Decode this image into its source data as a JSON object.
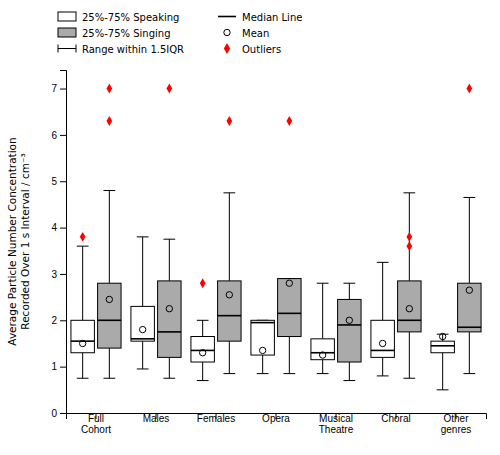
{
  "chart_data": {
    "type": "box",
    "categories": [
      "Full\nCohort",
      "Males",
      "Females",
      "Opera",
      "Musical\nTheatre",
      "Choral",
      "Other\ngenres"
    ],
    "series": [
      {
        "name": "25%-75% Speaking",
        "color": "#ffffff",
        "q1": [
          1.3,
          1.55,
          1.1,
          1.25,
          1.15,
          1.2,
          1.3
        ],
        "median": [
          1.55,
          1.6,
          1.35,
          1.95,
          1.3,
          1.35,
          1.45
        ],
        "q3": [
          2.0,
          2.3,
          1.65,
          2.0,
          1.6,
          2.0,
          1.55
        ],
        "whislo": [
          0.75,
          0.95,
          0.7,
          0.85,
          0.85,
          0.8,
          0.5
        ],
        "whishi": [
          3.6,
          3.8,
          2.0,
          2.0,
          2.8,
          3.25,
          1.7
        ],
        "mean": [
          1.5,
          1.8,
          1.3,
          1.35,
          1.25,
          1.5,
          1.65
        ],
        "outliers": [
          [
            3.8
          ],
          [],
          [
            2.8
          ],
          [],
          [],
          [],
          []
        ]
      },
      {
        "name": "25%-75% Singing",
        "color": "#aaaaaa",
        "q1": [
          1.4,
          1.2,
          1.55,
          1.65,
          1.1,
          1.75,
          1.75
        ],
        "median": [
          2.0,
          1.75,
          2.1,
          2.15,
          1.9,
          2.0,
          1.85
        ],
        "q3": [
          2.8,
          2.85,
          2.85,
          2.9,
          2.45,
          2.85,
          2.8
        ],
        "whislo": [
          0.75,
          0.75,
          0.85,
          0.85,
          0.7,
          0.75,
          0.85
        ],
        "whishi": [
          4.8,
          3.75,
          4.75,
          2.9,
          2.8,
          4.75,
          4.65
        ],
        "mean": [
          2.45,
          2.25,
          2.55,
          2.8,
          2.0,
          2.25,
          2.65
        ],
        "outliers": [
          [
            6.3,
            7.0
          ],
          [
            7.0
          ],
          [
            6.3
          ],
          [
            6.3
          ],
          [],
          [
            3.8,
            3.6
          ],
          [
            7.0
          ]
        ]
      }
    ],
    "legend_entries": [
      {
        "name": "Median Line",
        "marker": "line"
      },
      {
        "name": "Mean",
        "marker": "circle"
      },
      {
        "name": "Range within 1.5IQR",
        "marker": "whisker"
      },
      {
        "name": "Outliers",
        "marker": "diamond",
        "color": "#ff0000"
      }
    ],
    "ylabel": "Average Particle Number Concentration\nRecorded Over 1 s Interval / cm⁻³",
    "ylim": [
      0,
      7.4
    ],
    "yticks": [
      0,
      1,
      2,
      3,
      4,
      5,
      6,
      7
    ],
    "grid": false,
    "legend": "top"
  }
}
